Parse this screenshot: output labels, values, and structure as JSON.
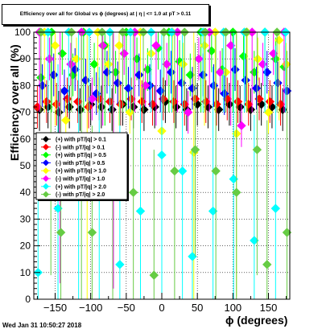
{
  "chart_data": {
    "type": "scatter",
    "title": "Efficiency over all for Global vs ϕ (degrees) at | η | <= 1.0 at pT > 0.11",
    "xlabel": "ϕ (degrees)",
    "ylabel": "Efficiency over all (%)",
    "xlim": [
      -180,
      180
    ],
    "ylim": [
      0,
      100
    ],
    "x_ticks": [
      -150,
      -100,
      -50,
      0,
      50,
      100,
      150
    ],
    "y_ticks": [
      0,
      10,
      20,
      30,
      40,
      50,
      60,
      70,
      80,
      90,
      100
    ],
    "grid": true,
    "legend_position": "left-middle",
    "series": [
      {
        "name": "(+) with pT/|q| > 0.1",
        "color": "#000000",
        "points": [
          [
            -172,
            71
          ],
          [
            -160,
            72
          ],
          [
            -145,
            70
          ],
          [
            -130,
            72
          ],
          [
            -115,
            71
          ],
          [
            -100,
            73
          ],
          [
            -85,
            72
          ],
          [
            -70,
            71
          ],
          [
            -55,
            73
          ],
          [
            -40,
            72
          ],
          [
            -25,
            71
          ],
          [
            -10,
            72
          ],
          [
            5,
            74
          ],
          [
            20,
            72
          ],
          [
            35,
            71
          ],
          [
            50,
            73
          ],
          [
            65,
            72
          ],
          [
            80,
            71
          ],
          [
            95,
            73
          ],
          [
            110,
            72
          ],
          [
            125,
            71
          ],
          [
            140,
            73
          ],
          [
            155,
            72
          ],
          [
            170,
            71
          ]
        ]
      },
      {
        "name": "(-) with pT/|q| > 0.1",
        "color": "#ff0000",
        "points": [
          [
            -175,
            72
          ],
          [
            -162,
            74
          ],
          [
            -148,
            73
          ],
          [
            -133,
            75
          ],
          [
            -118,
            74
          ],
          [
            -103,
            72
          ],
          [
            -88,
            75
          ],
          [
            -73,
            74
          ],
          [
            -58,
            73
          ],
          [
            -43,
            75
          ],
          [
            -28,
            74
          ],
          [
            -13,
            73
          ],
          [
            2,
            75
          ],
          [
            17,
            74
          ],
          [
            32,
            73
          ],
          [
            47,
            75
          ],
          [
            62,
            74
          ],
          [
            77,
            73
          ],
          [
            92,
            75
          ],
          [
            107,
            74
          ],
          [
            122,
            73
          ],
          [
            137,
            75
          ],
          [
            152,
            74
          ],
          [
            167,
            73
          ]
        ]
      },
      {
        "name": "(+) with pT/|q| > 0.5",
        "color": "#00ff00",
        "points": [
          [
            -170,
            83
          ],
          [
            -155,
            100
          ],
          [
            -140,
            92
          ],
          [
            -125,
            84
          ],
          [
            -110,
            100
          ],
          [
            -95,
            88
          ],
          [
            -80,
            95
          ],
          [
            -65,
            85
          ],
          [
            -50,
            100
          ],
          [
            -35,
            90
          ],
          [
            -20,
            86
          ],
          [
            -5,
            94
          ],
          [
            10,
            100
          ],
          [
            25,
            89
          ],
          [
            40,
            84
          ],
          [
            55,
            100
          ],
          [
            70,
            93
          ],
          [
            85,
            86
          ],
          [
            100,
            100
          ],
          [
            115,
            91
          ],
          [
            130,
            85
          ],
          [
            145,
            100
          ],
          [
            160,
            90
          ],
          [
            172,
            87
          ]
        ]
      },
      {
        "name": "(-) with pT/|q| > 0.5",
        "color": "#0000ff",
        "points": [
          [
            -168,
            80
          ],
          [
            -152,
            84
          ],
          [
            -137,
            78
          ],
          [
            -122,
            86
          ],
          [
            -107,
            82
          ],
          [
            -92,
            77
          ],
          [
            -77,
            85
          ],
          [
            -62,
            81
          ],
          [
            -47,
            79
          ],
          [
            -32,
            84
          ],
          [
            -17,
            80
          ],
          [
            -2,
            78
          ],
          [
            13,
            85
          ],
          [
            28,
            81
          ],
          [
            43,
            79
          ],
          [
            58,
            84
          ],
          [
            73,
            80
          ],
          [
            88,
            77
          ],
          [
            103,
            86
          ],
          [
            118,
            82
          ],
          [
            133,
            79
          ],
          [
            148,
            85
          ],
          [
            163,
            81
          ],
          [
            176,
            78
          ]
        ]
      },
      {
        "name": "(+) with pT/|q| > 1.0",
        "color": "#ffff00",
        "points": [
          [
            -165,
            100
          ],
          [
            -150,
            95
          ],
          [
            -135,
            67
          ],
          [
            -120,
            90
          ],
          [
            -105,
            60
          ],
          [
            -90,
            100
          ],
          [
            -75,
            88
          ],
          [
            -60,
            95
          ],
          [
            -45,
            70
          ],
          [
            -30,
            100
          ],
          [
            -15,
            92
          ],
          [
            0,
            63
          ],
          [
            15,
            100
          ],
          [
            30,
            88
          ],
          [
            45,
            55
          ],
          [
            60,
            95
          ],
          [
            75,
            100
          ],
          [
            90,
            85
          ],
          [
            105,
            62
          ],
          [
            120,
            100
          ],
          [
            135,
            90
          ],
          [
            150,
            70
          ],
          [
            165,
            97
          ],
          [
            175,
            88
          ]
        ]
      },
      {
        "name": "(-) with pT/|q| > 1.0",
        "color": "#ff00ff",
        "points": [
          [
            -172,
            100
          ],
          [
            -158,
            90
          ],
          [
            -143,
            60
          ],
          [
            -128,
            88
          ],
          [
            -113,
            100
          ],
          [
            -98,
            75
          ],
          [
            -83,
            95
          ],
          [
            -68,
            58
          ],
          [
            -53,
            92
          ],
          [
            -38,
            100
          ],
          [
            -23,
            80
          ],
          [
            -8,
            95
          ],
          [
            7,
            88
          ],
          [
            22,
            100
          ],
          [
            37,
            70
          ],
          [
            52,
            90
          ],
          [
            67,
            100
          ],
          [
            82,
            85
          ],
          [
            97,
            95
          ],
          [
            112,
            65
          ],
          [
            127,
            100
          ],
          [
            142,
            88
          ],
          [
            157,
            92
          ],
          [
            172,
            100
          ]
        ]
      },
      {
        "name": "(+) with pT/|q| > 2.0",
        "color": "#00ffff",
        "points": [
          [
            -174,
            10
          ],
          [
            -160,
            100
          ],
          [
            -146,
            34
          ],
          [
            -131,
            100
          ],
          [
            -117,
            58
          ],
          [
            -102,
            100
          ],
          [
            -88,
            40
          ],
          [
            -73,
            100
          ],
          [
            -59,
            13
          ],
          [
            -44,
            100
          ],
          [
            -30,
            33
          ],
          [
            -15,
            100
          ],
          [
            0,
            54
          ],
          [
            14,
            100
          ],
          [
            29,
            48
          ],
          [
            43,
            16
          ],
          [
            58,
            100
          ],
          [
            72,
            33
          ],
          [
            87,
            100
          ],
          [
            101,
            45
          ],
          [
            116,
            100
          ],
          [
            130,
            22
          ],
          [
            145,
            100
          ],
          [
            160,
            34
          ],
          [
            174,
            100
          ]
        ]
      },
      {
        "name": "(-) with pT/|q| > 2.0",
        "color": "#66cc44",
        "points": [
          [
            -170,
            100
          ],
          [
            -156,
            56
          ],
          [
            -142,
            25
          ],
          [
            -127,
            100
          ],
          [
            -113,
            60
          ],
          [
            -98,
            25
          ],
          [
            -84,
            100
          ],
          [
            -69,
            50
          ],
          [
            -55,
            100
          ],
          [
            -40,
            40
          ],
          [
            -26,
            100
          ],
          [
            -11,
            9
          ],
          [
            3,
            100
          ],
          [
            18,
            48
          ],
          [
            32,
            100
          ],
          [
            47,
            56
          ],
          [
            61,
            100
          ],
          [
            76,
            48
          ],
          [
            90,
            100
          ],
          [
            105,
            40
          ],
          [
            119,
            100
          ],
          [
            134,
            56
          ],
          [
            148,
            13
          ],
          [
            162,
            100
          ],
          [
            176,
            25
          ]
        ]
      }
    ]
  }
}
